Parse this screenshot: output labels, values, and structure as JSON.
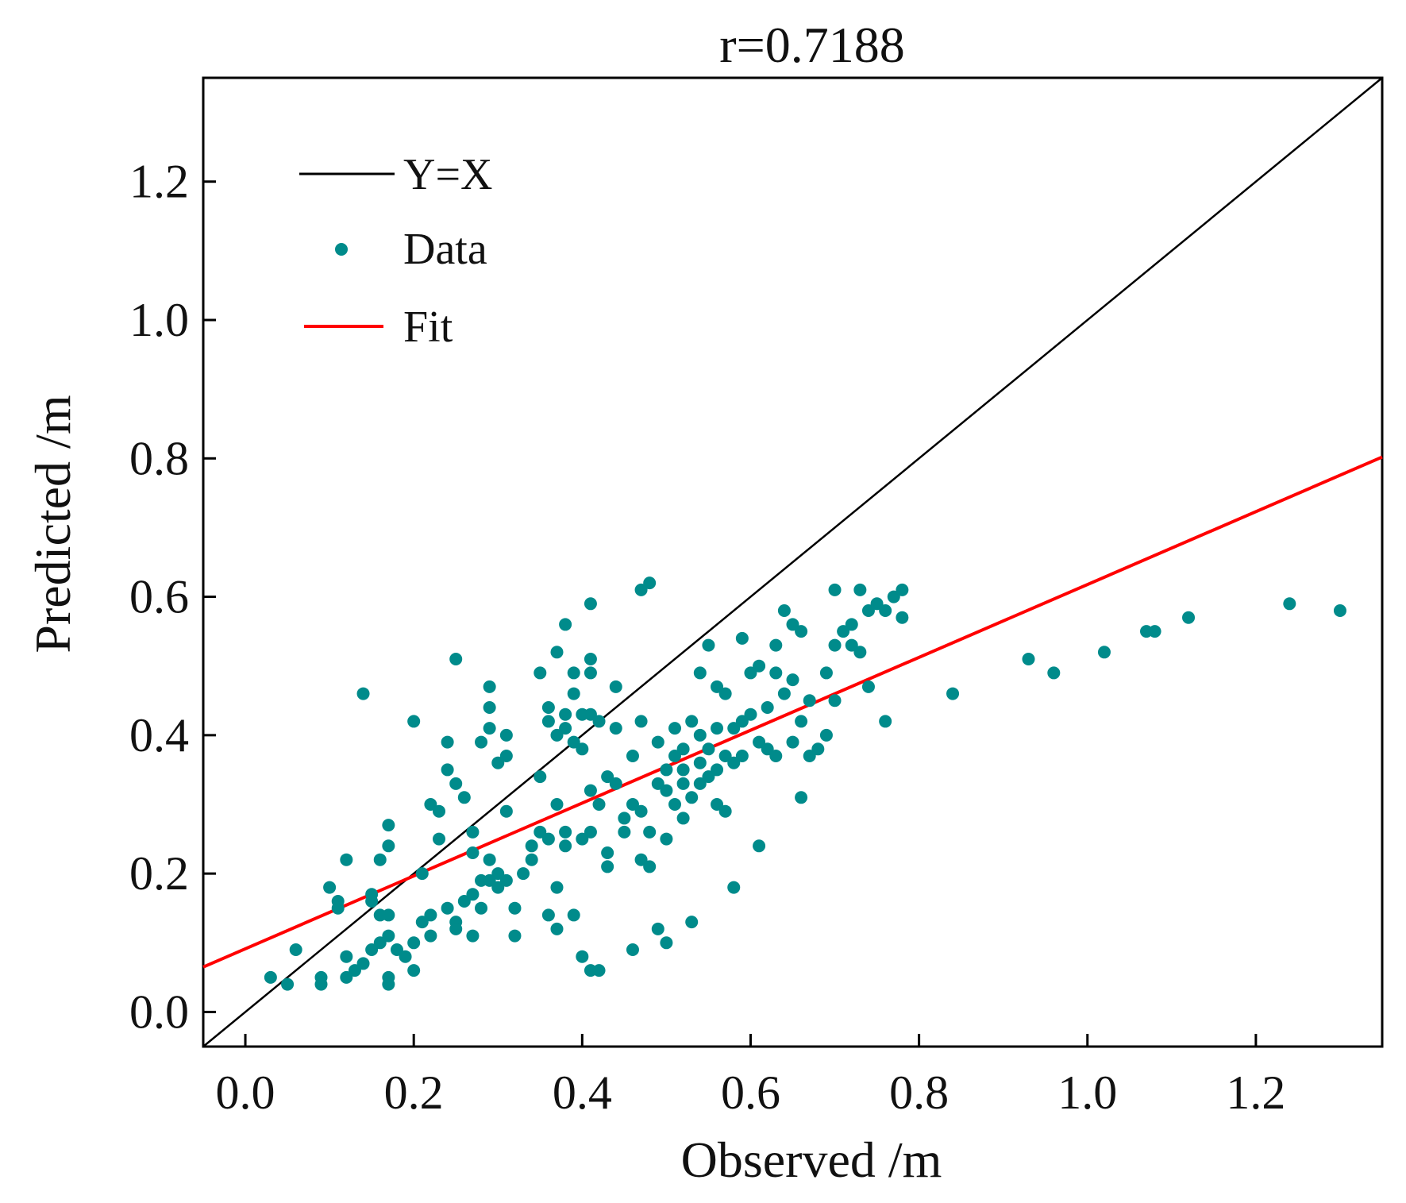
{
  "chart_data": {
    "type": "scatter",
    "title": "r=0.7188",
    "xlabel": "Observed /m",
    "ylabel": "Predicted /m",
    "xlim": [
      -0.05,
      1.35
    ],
    "ylim": [
      -0.05,
      1.35
    ],
    "xticks": [
      "0.0",
      "0.2",
      "0.4",
      "0.6",
      "0.8",
      "1.0",
      "1.2"
    ],
    "yticks": [
      "0.0",
      "0.2",
      "0.4",
      "0.6",
      "0.8",
      "1.0",
      "1.2"
    ],
    "grid": false,
    "legend": {
      "placement": "top-left",
      "entries": [
        {
          "label": "Y=X",
          "kind": "line",
          "color": "#000000"
        },
        {
          "label": "Data",
          "kind": "marker",
          "color": "#008b8b"
        },
        {
          "label": "Fit",
          "kind": "line",
          "color": "#ff0000"
        }
      ]
    },
    "colors": {
      "identity": "#000000",
      "data": "#008b8b",
      "fit": "#ff0000",
      "axis": "#000000"
    },
    "series": [
      {
        "name": "Y=X",
        "type": "line",
        "x": [
          -0.05,
          1.35
        ],
        "y": [
          -0.05,
          1.35
        ]
      },
      {
        "name": "Fit",
        "type": "line",
        "x": [
          -0.05,
          1.35
        ],
        "y": [
          0.065,
          0.802
        ]
      },
      {
        "name": "Data",
        "type": "scatter",
        "points": [
          [
            0.03,
            0.05
          ],
          [
            0.05,
            0.04
          ],
          [
            0.06,
            0.09
          ],
          [
            0.09,
            0.05
          ],
          [
            0.09,
            0.04
          ],
          [
            0.1,
            0.18
          ],
          [
            0.11,
            0.16
          ],
          [
            0.11,
            0.15
          ],
          [
            0.12,
            0.22
          ],
          [
            0.12,
            0.05
          ],
          [
            0.12,
            0.08
          ],
          [
            0.13,
            0.06
          ],
          [
            0.14,
            0.46
          ],
          [
            0.14,
            0.07
          ],
          [
            0.15,
            0.17
          ],
          [
            0.15,
            0.16
          ],
          [
            0.15,
            0.09
          ],
          [
            0.16,
            0.22
          ],
          [
            0.16,
            0.14
          ],
          [
            0.16,
            0.1
          ],
          [
            0.17,
            0.27
          ],
          [
            0.17,
            0.24
          ],
          [
            0.17,
            0.14
          ],
          [
            0.17,
            0.11
          ],
          [
            0.17,
            0.05
          ],
          [
            0.17,
            0.04
          ],
          [
            0.18,
            0.09
          ],
          [
            0.19,
            0.08
          ],
          [
            0.2,
            0.42
          ],
          [
            0.2,
            0.1
          ],
          [
            0.2,
            0.06
          ],
          [
            0.21,
            0.2
          ],
          [
            0.21,
            0.13
          ],
          [
            0.22,
            0.3
          ],
          [
            0.22,
            0.14
          ],
          [
            0.22,
            0.11
          ],
          [
            0.23,
            0.25
          ],
          [
            0.23,
            0.29
          ],
          [
            0.24,
            0.35
          ],
          [
            0.24,
            0.39
          ],
          [
            0.24,
            0.15
          ],
          [
            0.25,
            0.33
          ],
          [
            0.25,
            0.51
          ],
          [
            0.25,
            0.13
          ],
          [
            0.25,
            0.12
          ],
          [
            0.26,
            0.31
          ],
          [
            0.26,
            0.16
          ],
          [
            0.27,
            0.23
          ],
          [
            0.27,
            0.26
          ],
          [
            0.27,
            0.17
          ],
          [
            0.27,
            0.11
          ],
          [
            0.28,
            0.39
          ],
          [
            0.28,
            0.19
          ],
          [
            0.28,
            0.15
          ],
          [
            0.29,
            0.47
          ],
          [
            0.29,
            0.44
          ],
          [
            0.29,
            0.41
          ],
          [
            0.29,
            0.22
          ],
          [
            0.29,
            0.19
          ],
          [
            0.3,
            0.36
          ],
          [
            0.3,
            0.2
          ],
          [
            0.3,
            0.18
          ],
          [
            0.31,
            0.4
          ],
          [
            0.31,
            0.37
          ],
          [
            0.31,
            0.29
          ],
          [
            0.31,
            0.19
          ],
          [
            0.32,
            0.15
          ],
          [
            0.32,
            0.11
          ],
          [
            0.33,
            0.2
          ],
          [
            0.34,
            0.24
          ],
          [
            0.34,
            0.22
          ],
          [
            0.35,
            0.49
          ],
          [
            0.35,
            0.34
          ],
          [
            0.35,
            0.26
          ],
          [
            0.36,
            0.44
          ],
          [
            0.36,
            0.42
          ],
          [
            0.36,
            0.25
          ],
          [
            0.36,
            0.14
          ],
          [
            0.37,
            0.52
          ],
          [
            0.37,
            0.4
          ],
          [
            0.37,
            0.3
          ],
          [
            0.37,
            0.18
          ],
          [
            0.37,
            0.12
          ],
          [
            0.38,
            0.56
          ],
          [
            0.38,
            0.43
          ],
          [
            0.38,
            0.41
          ],
          [
            0.38,
            0.26
          ],
          [
            0.38,
            0.24
          ],
          [
            0.39,
            0.49
          ],
          [
            0.39,
            0.46
          ],
          [
            0.39,
            0.39
          ],
          [
            0.39,
            0.14
          ],
          [
            0.4,
            0.43
          ],
          [
            0.4,
            0.38
          ],
          [
            0.4,
            0.25
          ],
          [
            0.4,
            0.08
          ],
          [
            0.41,
            0.59
          ],
          [
            0.41,
            0.51
          ],
          [
            0.41,
            0.49
          ],
          [
            0.41,
            0.43
          ],
          [
            0.41,
            0.32
          ],
          [
            0.41,
            0.26
          ],
          [
            0.41,
            0.06
          ],
          [
            0.42,
            0.42
          ],
          [
            0.42,
            0.3
          ],
          [
            0.42,
            0.06
          ],
          [
            0.43,
            0.34
          ],
          [
            0.43,
            0.23
          ],
          [
            0.43,
            0.21
          ],
          [
            0.44,
            0.47
          ],
          [
            0.44,
            0.41
          ],
          [
            0.44,
            0.33
          ],
          [
            0.45,
            0.28
          ],
          [
            0.45,
            0.26
          ],
          [
            0.46,
            0.37
          ],
          [
            0.46,
            0.3
          ],
          [
            0.46,
            0.09
          ],
          [
            0.47,
            0.61
          ],
          [
            0.47,
            0.42
          ],
          [
            0.47,
            0.29
          ],
          [
            0.47,
            0.22
          ],
          [
            0.48,
            0.62
          ],
          [
            0.48,
            0.26
          ],
          [
            0.48,
            0.21
          ],
          [
            0.49,
            0.39
          ],
          [
            0.49,
            0.33
          ],
          [
            0.49,
            0.12
          ],
          [
            0.5,
            0.35
          ],
          [
            0.5,
            0.32
          ],
          [
            0.5,
            0.25
          ],
          [
            0.5,
            0.1
          ],
          [
            0.51,
            0.41
          ],
          [
            0.51,
            0.37
          ],
          [
            0.51,
            0.3
          ],
          [
            0.52,
            0.38
          ],
          [
            0.52,
            0.35
          ],
          [
            0.52,
            0.33
          ],
          [
            0.52,
            0.28
          ],
          [
            0.53,
            0.42
          ],
          [
            0.53,
            0.31
          ],
          [
            0.53,
            0.13
          ],
          [
            0.54,
            0.49
          ],
          [
            0.54,
            0.4
          ],
          [
            0.54,
            0.36
          ],
          [
            0.54,
            0.33
          ],
          [
            0.55,
            0.53
          ],
          [
            0.55,
            0.38
          ],
          [
            0.55,
            0.34
          ],
          [
            0.56,
            0.47
          ],
          [
            0.56,
            0.41
          ],
          [
            0.56,
            0.35
          ],
          [
            0.56,
            0.3
          ],
          [
            0.57,
            0.46
          ],
          [
            0.57,
            0.37
          ],
          [
            0.57,
            0.29
          ],
          [
            0.58,
            0.41
          ],
          [
            0.58,
            0.36
          ],
          [
            0.58,
            0.18
          ],
          [
            0.59,
            0.54
          ],
          [
            0.59,
            0.42
          ],
          [
            0.59,
            0.37
          ],
          [
            0.6,
            0.49
          ],
          [
            0.6,
            0.43
          ],
          [
            0.61,
            0.5
          ],
          [
            0.61,
            0.39
          ],
          [
            0.61,
            0.24
          ],
          [
            0.62,
            0.44
          ],
          [
            0.62,
            0.38
          ],
          [
            0.63,
            0.53
          ],
          [
            0.63,
            0.49
          ],
          [
            0.63,
            0.37
          ],
          [
            0.64,
            0.58
          ],
          [
            0.64,
            0.46
          ],
          [
            0.65,
            0.56
          ],
          [
            0.65,
            0.48
          ],
          [
            0.65,
            0.39
          ],
          [
            0.66,
            0.55
          ],
          [
            0.66,
            0.42
          ],
          [
            0.66,
            0.31
          ],
          [
            0.67,
            0.45
          ],
          [
            0.67,
            0.37
          ],
          [
            0.68,
            0.38
          ],
          [
            0.69,
            0.49
          ],
          [
            0.69,
            0.4
          ],
          [
            0.7,
            0.61
          ],
          [
            0.7,
            0.53
          ],
          [
            0.7,
            0.45
          ],
          [
            0.71,
            0.55
          ],
          [
            0.72,
            0.56
          ],
          [
            0.72,
            0.53
          ],
          [
            0.73,
            0.61
          ],
          [
            0.73,
            0.52
          ],
          [
            0.74,
            0.58
          ],
          [
            0.74,
            0.47
          ],
          [
            0.75,
            0.59
          ],
          [
            0.76,
            0.58
          ],
          [
            0.76,
            0.42
          ],
          [
            0.77,
            0.6
          ],
          [
            0.78,
            0.61
          ],
          [
            0.78,
            0.57
          ],
          [
            0.84,
            0.46
          ],
          [
            0.93,
            0.51
          ],
          [
            0.96,
            0.49
          ],
          [
            1.02,
            0.52
          ],
          [
            1.07,
            0.55
          ],
          [
            1.08,
            0.55
          ],
          [
            1.12,
            0.57
          ],
          [
            1.24,
            0.59
          ],
          [
            1.3,
            0.58
          ]
        ]
      }
    ]
  }
}
